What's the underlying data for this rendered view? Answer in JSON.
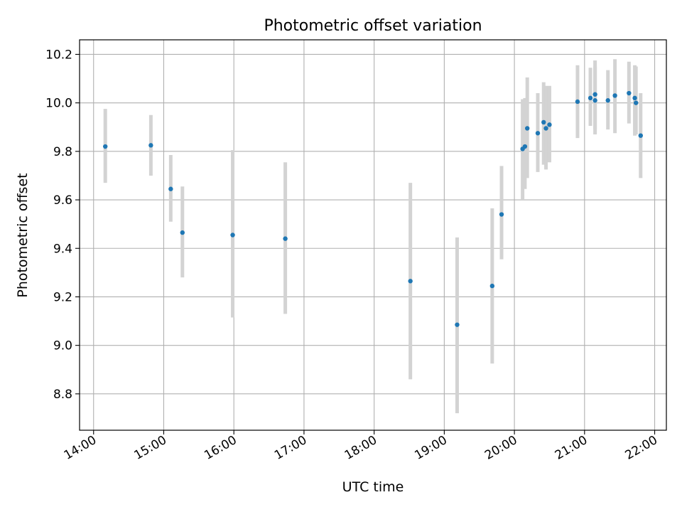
{
  "chart_data": {
    "type": "scatter",
    "title": "Photometric offset variation",
    "xlabel": "UTC time",
    "ylabel": "Photometric offset",
    "x_tick_labels": [
      "14:00",
      "15:00",
      "16:00",
      "17:00",
      "18:00",
      "19:00",
      "20:00",
      "21:00",
      "22:00"
    ],
    "x_tick_hours": [
      14,
      15,
      16,
      17,
      18,
      19,
      20,
      21,
      22
    ],
    "y_ticks": [
      8.8,
      9.0,
      9.2,
      9.4,
      9.6,
      9.8,
      10.0,
      10.2
    ],
    "y_tick_labels": [
      "8.8",
      "9.0",
      "9.2",
      "9.4",
      "9.6",
      "9.8",
      "10.0",
      "10.2"
    ],
    "xlim": [
      "13:48",
      "22:10"
    ],
    "ylim": [
      8.65,
      10.26
    ],
    "grid": true,
    "colors": {
      "point": "#1f77b4",
      "errorbar": "#d3d3d3",
      "grid": "#b0b0b0"
    },
    "points": [
      {
        "time": "14:10",
        "y": 9.82,
        "err_low": 9.67,
        "err_high": 9.975
      },
      {
        "time": "14:49",
        "y": 9.825,
        "err_low": 9.7,
        "err_high": 9.95
      },
      {
        "time": "15:06",
        "y": 9.645,
        "err_low": 9.51,
        "err_high": 9.785
      },
      {
        "time": "15:16",
        "y": 9.465,
        "err_low": 9.28,
        "err_high": 9.655
      },
      {
        "time": "15:59",
        "y": 9.455,
        "err_low": 9.115,
        "err_high": 9.805
      },
      {
        "time": "16:44",
        "y": 9.44,
        "err_low": 9.13,
        "err_high": 9.755
      },
      {
        "time": "18:31",
        "y": 9.265,
        "err_low": 8.86,
        "err_high": 9.67
      },
      {
        "time": "19:11",
        "y": 9.085,
        "err_low": 8.72,
        "err_high": 9.445
      },
      {
        "time": "19:41",
        "y": 9.245,
        "err_low": 8.925,
        "err_high": 9.565
      },
      {
        "time": "19:49",
        "y": 9.54,
        "err_low": 9.355,
        "err_high": 9.74
      },
      {
        "time": "20:07",
        "y": 9.81,
        "err_low": 9.6,
        "err_high": 10.015
      },
      {
        "time": "20:09",
        "y": 9.82,
        "err_low": 9.645,
        "err_high": 10.02
      },
      {
        "time": "20:11",
        "y": 9.895,
        "err_low": 9.69,
        "err_high": 10.105
      },
      {
        "time": "20:20",
        "y": 9.875,
        "err_low": 9.715,
        "err_high": 10.04
      },
      {
        "time": "20:25",
        "y": 9.92,
        "err_low": 9.745,
        "err_high": 10.085
      },
      {
        "time": "20:27",
        "y": 9.895,
        "err_low": 9.725,
        "err_high": 10.07
      },
      {
        "time": "20:30",
        "y": 9.91,
        "err_low": 9.755,
        "err_high": 10.07
      },
      {
        "time": "20:54",
        "y": 10.005,
        "err_low": 9.855,
        "err_high": 10.155
      },
      {
        "time": "21:05",
        "y": 10.02,
        "err_low": 9.905,
        "err_high": 10.145
      },
      {
        "time": "21:09",
        "y": 10.035,
        "err_low": 9.89,
        "err_high": 10.175
      },
      {
        "time": "21:09",
        "y": 10.01,
        "err_low": 9.87,
        "err_high": 10.15
      },
      {
        "time": "21:20",
        "y": 10.01,
        "err_low": 9.89,
        "err_high": 10.135
      },
      {
        "time": "21:26",
        "y": 10.03,
        "err_low": 9.875,
        "err_high": 10.18
      },
      {
        "time": "21:38",
        "y": 10.04,
        "err_low": 9.915,
        "err_high": 10.17
      },
      {
        "time": "21:43",
        "y": 10.02,
        "err_low": 9.865,
        "err_high": 10.155
      },
      {
        "time": "21:44",
        "y": 10.0,
        "err_low": 9.87,
        "err_high": 10.15
      },
      {
        "time": "21:48",
        "y": 9.865,
        "err_low": 9.69,
        "err_high": 10.04
      }
    ]
  }
}
